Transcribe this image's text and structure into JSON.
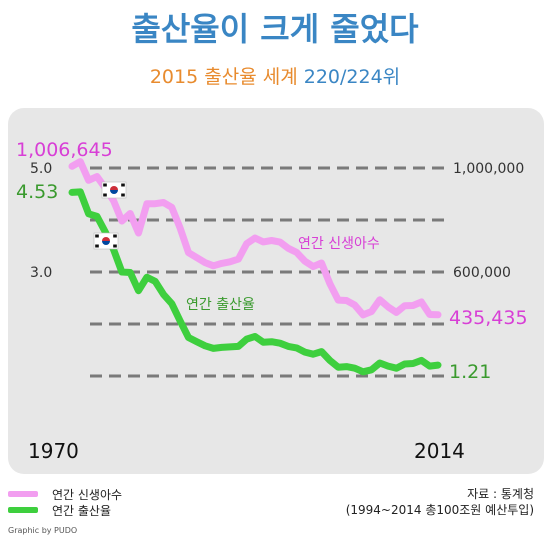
{
  "header": {
    "title": "출산율이 크게 줄었다",
    "subtitle_a": "2015 출산율 세계",
    "subtitle_b": "220/224위"
  },
  "colors": {
    "births": "#f29ef0",
    "fertility": "#3ecf3e",
    "births_text": "#d83fd6",
    "fertility_text": "#3a9a2e",
    "panel": "#e7e7e7"
  },
  "chart_data": {
    "type": "line",
    "x_range": [
      1970,
      2014
    ],
    "x_tick_labels": [
      "1970",
      "2014"
    ],
    "left_axis": {
      "ticks": [
        5.0,
        3.0
      ],
      "tick_labels": [
        "5.0",
        "3.0"
      ],
      "range": [
        1.0,
        5.0
      ]
    },
    "right_axis": {
      "ticks": [
        1000000,
        600000
      ],
      "tick_labels": [
        "1,000,000",
        "600,000"
      ],
      "range": [
        200000,
        1000000
      ]
    },
    "grid": "dashed",
    "series": [
      {
        "name": "연간 신생아수",
        "axis": "right",
        "start_label": "1,006,645",
        "end_label": "435,435",
        "x": [
          1970,
          1971,
          1972,
          1973,
          1974,
          1975,
          1976,
          1977,
          1978,
          1979,
          1980,
          1981,
          1982,
          1983,
          1984,
          1985,
          1986,
          1987,
          1988,
          1989,
          1990,
          1991,
          1992,
          1993,
          1994,
          1995,
          1996,
          1997,
          1998,
          1999,
          2000,
          2001,
          2002,
          2003,
          2004,
          2005,
          2006,
          2007,
          2008,
          2009,
          2010,
          2011,
          2012,
          2013,
          2014
        ],
        "y": [
          1006645,
          1024773,
          952780,
          967000,
          922800,
          874000,
          796000,
          825000,
          750000,
          862700,
          862800,
          867400,
          848300,
          769200,
          674800,
          655500,
          636000,
          623800,
          633100,
          639400,
          649700,
          709300,
          730700,
          715800,
          721200,
          715000,
          691200,
          675400,
          641600,
          620700,
          634500,
          554900,
          492100,
          490500,
          472800,
          435000,
          448200,
          493200,
          465900,
          444800,
          470200,
          471300,
          484600,
          436500,
          435435
        ]
      },
      {
        "name": "연간 출산율",
        "axis": "left",
        "start_label": "4.53",
        "end_label": "1.21",
        "x": [
          1970,
          1971,
          1972,
          1973,
          1974,
          1975,
          1976,
          1977,
          1978,
          1979,
          1980,
          1981,
          1982,
          1983,
          1984,
          1985,
          1986,
          1987,
          1988,
          1989,
          1990,
          1991,
          1992,
          1993,
          1994,
          1995,
          1996,
          1997,
          1998,
          1999,
          2000,
          2001,
          2002,
          2003,
          2004,
          2005,
          2006,
          2007,
          2008,
          2009,
          2010,
          2011,
          2012,
          2013,
          2014
        ],
        "y": [
          4.53,
          4.54,
          4.12,
          4.07,
          3.77,
          3.43,
          3.0,
          2.99,
          2.64,
          2.9,
          2.82,
          2.57,
          2.39,
          2.06,
          1.74,
          1.66,
          1.58,
          1.53,
          1.55,
          1.56,
          1.57,
          1.71,
          1.76,
          1.65,
          1.66,
          1.63,
          1.57,
          1.54,
          1.46,
          1.42,
          1.47,
          1.3,
          1.17,
          1.18,
          1.15,
          1.08,
          1.12,
          1.25,
          1.19,
          1.15,
          1.23,
          1.24,
          1.3,
          1.19,
          1.21
        ]
      }
    ]
  },
  "annotations": {
    "births_label": "연간 신생아수",
    "fertility_label": "연간 출산율"
  },
  "legend": {
    "births": "연간 신생아수",
    "fertility": "연간 출산율"
  },
  "source": {
    "line1": "자료 : 통계청",
    "line2": "(1994~2014 총100조원 예산투입)"
  },
  "credit": "Graphic by PUDO"
}
